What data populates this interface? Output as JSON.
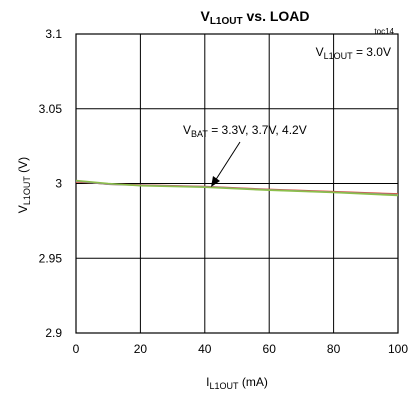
{
  "chart_data": {
    "type": "line",
    "title": {
      "main": "V",
      "sub": "L1OUT",
      "rest": " vs. LOAD"
    },
    "toc_label": "toc14",
    "xlabel": {
      "main": "I",
      "sub": "L1OUT",
      "rest": " (mA)"
    },
    "ylabel": {
      "main": "V",
      "sub": "L1OUT",
      "rest": " (V)"
    },
    "xlim": [
      0,
      100
    ],
    "ylim": [
      2.9,
      3.1
    ],
    "x_ticks": [
      "0",
      "20",
      "40",
      "60",
      "80",
      "100"
    ],
    "y_ticks": [
      "2.9",
      "2.95",
      "3",
      "3.05",
      "3.1"
    ],
    "grid": true,
    "annotation_condition": {
      "main": "V",
      "sub": "L1OUT",
      "rest": " = 3.0V"
    },
    "annotation_series": {
      "main": "V",
      "sub": "BAT",
      "rest": " = 3.3V, 3.7V, 4.2V"
    },
    "series": [
      {
        "name": "3.3V",
        "color": "#e2483a",
        "x": [
          0,
          5,
          10,
          20,
          40,
          60,
          80,
          100
        ],
        "y": [
          3.001,
          3.0005,
          2.9995,
          2.999,
          2.998,
          2.996,
          2.9945,
          2.993
        ]
      },
      {
        "name": "3.7V",
        "color": "#8f8f8f",
        "x": [
          0,
          5,
          10,
          20,
          40,
          60,
          80,
          100
        ],
        "y": [
          3.0015,
          3.0005,
          2.9995,
          2.9988,
          2.9978,
          2.9958,
          2.9942,
          2.9925
        ]
      },
      {
        "name": "4.2V",
        "color": "#8cbf4a",
        "x": [
          0,
          5,
          10,
          20,
          40,
          60,
          80,
          100
        ],
        "y": [
          3.002,
          3.001,
          3.0,
          2.9985,
          2.9975,
          2.9955,
          2.994,
          2.992
        ]
      }
    ]
  }
}
